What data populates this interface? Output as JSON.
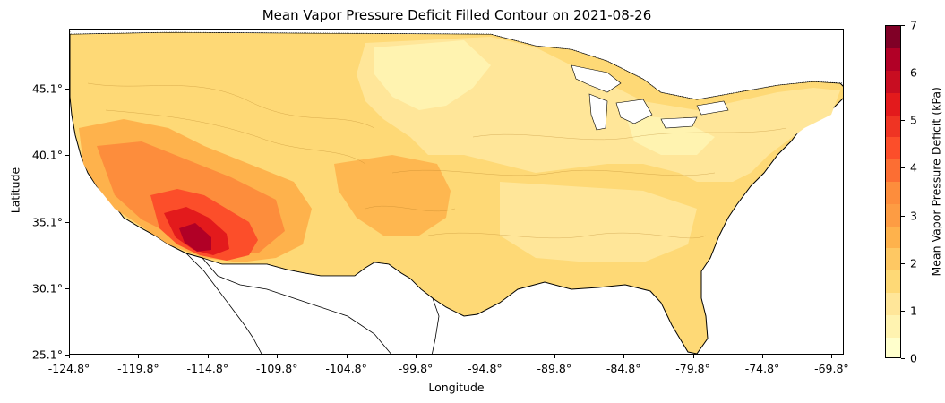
{
  "title": "Mean Vapor Pressure Deficit Filled Contour on 2021-08-26",
  "xlabel": "Longitude",
  "ylabel": "Latitude",
  "xticks": [
    "-124.8°",
    "-119.8°",
    "-114.8°",
    "-109.8°",
    "-104.8°",
    "-99.8°",
    "-94.8°",
    "-89.8°",
    "-84.8°",
    "-79.8°",
    "-74.8°",
    "-69.8°"
  ],
  "yticks": [
    "45.1°",
    "40.1°",
    "35.1°",
    "30.1°",
    "25.1°"
  ],
  "colorbar": {
    "label": "Mean Vapor Pressure Deficit (kPa)",
    "ticks": [
      "0",
      "1",
      "2",
      "3",
      "4",
      "5",
      "6",
      "7"
    ],
    "range": [
      0,
      7
    ],
    "levels": [
      0,
      0.5,
      1,
      1.5,
      2,
      2.5,
      3,
      3.5,
      4,
      4.5,
      5,
      5.5,
      6,
      6.5,
      7
    ],
    "colors": [
      "#ffffcc",
      "#fff3b0",
      "#ffe699",
      "#fed976",
      "#fec863",
      "#feb24c",
      "#fd9c43",
      "#fd8d3c",
      "#fc6e33",
      "#fc4e2a",
      "#ef3423",
      "#e31a1c",
      "#c80d21",
      "#b10026",
      "#800026"
    ]
  },
  "map": {
    "extent_lon": [
      -124.8,
      -66.9
    ],
    "extent_lat": [
      25.1,
      49.5
    ],
    "background": "#ffffff",
    "ocean_color": "#ffffff"
  }
}
